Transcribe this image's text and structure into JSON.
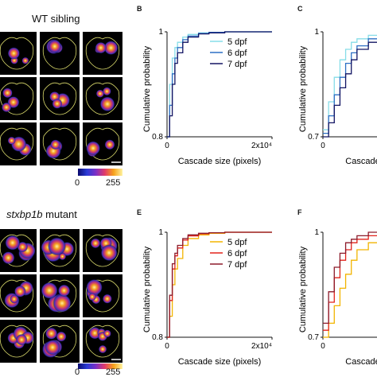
{
  "wt_title": "WT sibling",
  "mut_title_italic": "stxbp1b",
  "mut_title_rest": " mutant",
  "colorbar": {
    "min_label": "0",
    "max_label": "255",
    "colors": [
      "#0a0a6e",
      "#2a3bd6",
      "#7b2fc6",
      "#e23a6a",
      "#f7a21a",
      "#fff3a0"
    ]
  },
  "panel_letters": {
    "B": "B",
    "C": "C",
    "E": "E",
    "F": "F"
  },
  "colors": {
    "outline": "#d8d86a",
    "image_bg": "#000000",
    "cyan": "#86dde8",
    "blue": "#2c6fc4",
    "navy": "#121463",
    "orange": "#f2b400",
    "red": "#e2231a",
    "darkred": "#8c1a2a"
  },
  "chart_data": [
    {
      "panel": "B",
      "type": "line",
      "xlabel": "Cascade size (pixels)",
      "ylabel": "Cumulative probability",
      "xticks": [
        "0",
        "2x10⁴"
      ],
      "yticks": [
        "0.8",
        "1"
      ],
      "xlim": [
        0,
        20000
      ],
      "ylim": [
        0.8,
        1.0
      ],
      "legend_position": "top-right",
      "series": [
        {
          "name": "5 dpf",
          "color": "#86dde8",
          "x": [
            0,
            500,
            1000,
            1500,
            2000,
            3000,
            4000,
            6000,
            8000,
            11000,
            20000
          ],
          "y": [
            0.8,
            0.9,
            0.95,
            0.97,
            0.98,
            0.99,
            0.995,
            0.998,
            0.999,
            1.0,
            1.0
          ]
        },
        {
          "name": "6 dpf",
          "color": "#2c6fc4",
          "x": [
            0,
            500,
            1000,
            1500,
            2000,
            3000,
            4000,
            6000,
            8000,
            11000,
            20000
          ],
          "y": [
            0.8,
            0.86,
            0.92,
            0.95,
            0.97,
            0.985,
            0.992,
            0.997,
            0.999,
            1.0,
            1.0
          ]
        },
        {
          "name": "7 dpf",
          "color": "#121463",
          "x": [
            0,
            500,
            1000,
            1500,
            2000,
            3000,
            4000,
            6000,
            8000,
            11000,
            20000
          ],
          "y": [
            0.8,
            0.84,
            0.9,
            0.94,
            0.96,
            0.98,
            0.99,
            0.996,
            0.998,
            1.0,
            1.0
          ]
        }
      ]
    },
    {
      "panel": "C",
      "type": "line",
      "xlabel": "Cascade",
      "ylabel": "Cumulative probability",
      "xticks": [
        "0"
      ],
      "yticks": [
        "0.7",
        "1"
      ],
      "ylim": [
        0.7,
        1.0
      ],
      "series": [
        {
          "color": "#86dde8",
          "x": [
            0,
            1,
            2,
            3,
            4,
            5,
            6,
            8,
            10,
            14
          ],
          "y": [
            0.72,
            0.8,
            0.87,
            0.92,
            0.95,
            0.97,
            0.98,
            0.99,
            1.0,
            1.0
          ]
        },
        {
          "color": "#2c6fc4",
          "x": [
            0,
            1,
            2,
            3,
            4,
            5,
            6,
            8,
            10,
            14
          ],
          "y": [
            0.71,
            0.76,
            0.82,
            0.87,
            0.91,
            0.94,
            0.96,
            0.98,
            0.99,
            1.0
          ]
        },
        {
          "color": "#121463",
          "x": [
            0,
            1,
            2,
            3,
            4,
            5,
            6,
            8,
            10,
            14
          ],
          "y": [
            0.7,
            0.74,
            0.79,
            0.84,
            0.88,
            0.92,
            0.95,
            0.97,
            0.99,
            1.0
          ]
        }
      ]
    },
    {
      "panel": "E",
      "type": "line",
      "xlabel": "Cascade size (pixels)",
      "ylabel": "Cumulative probability",
      "xticks": [
        "0",
        "2x10⁴"
      ],
      "yticks": [
        "0.8",
        "1"
      ],
      "xlim": [
        0,
        20000
      ],
      "ylim": [
        0.8,
        1.0
      ],
      "legend_position": "top-right",
      "series": [
        {
          "name": "5 dpf",
          "color": "#f2b400",
          "x": [
            0,
            500,
            1000,
            1500,
            2000,
            3000,
            4000,
            6000,
            8000,
            11000,
            20000
          ],
          "y": [
            0.8,
            0.84,
            0.9,
            0.93,
            0.95,
            0.975,
            0.988,
            0.995,
            0.998,
            1.0,
            1.0
          ]
        },
        {
          "name": "6 dpf",
          "color": "#e2231a",
          "x": [
            0,
            500,
            1000,
            1500,
            2000,
            3000,
            4000,
            6000,
            8000,
            11000,
            20000
          ],
          "y": [
            0.8,
            0.87,
            0.93,
            0.955,
            0.97,
            0.985,
            0.993,
            0.997,
            0.999,
            1.0,
            1.0
          ]
        },
        {
          "name": "7 dpf",
          "color": "#8c1a2a",
          "x": [
            0,
            500,
            1000,
            1500,
            2000,
            3000,
            4000,
            6000,
            8000,
            11000,
            20000
          ],
          "y": [
            0.8,
            0.88,
            0.94,
            0.96,
            0.975,
            0.988,
            0.995,
            0.998,
            0.999,
            1.0,
            1.0
          ]
        }
      ]
    },
    {
      "panel": "F",
      "type": "line",
      "xlabel": "Cascade",
      "ylabel": "Cumulative probability",
      "xticks": [
        "0"
      ],
      "yticks": [
        "0.7",
        "1"
      ],
      "ylim": [
        0.7,
        1.0
      ],
      "series": [
        {
          "color": "#f2b400",
          "x": [
            0,
            1,
            2,
            3,
            4,
            5,
            6,
            8,
            10,
            14
          ],
          "y": [
            0.7,
            0.74,
            0.79,
            0.84,
            0.88,
            0.92,
            0.95,
            0.97,
            0.99,
            1.0
          ]
        },
        {
          "color": "#e2231a",
          "x": [
            0,
            1,
            2,
            3,
            4,
            5,
            6,
            8,
            10,
            14
          ],
          "y": [
            0.72,
            0.8,
            0.87,
            0.92,
            0.95,
            0.97,
            0.98,
            0.99,
            1.0,
            1.0
          ]
        },
        {
          "color": "#8c1a2a",
          "x": [
            0,
            1,
            2,
            3,
            4,
            5,
            6,
            8,
            10,
            14
          ],
          "y": [
            0.74,
            0.83,
            0.9,
            0.94,
            0.97,
            0.98,
            0.99,
            1.0,
            1.0,
            1.0
          ]
        }
      ]
    }
  ]
}
